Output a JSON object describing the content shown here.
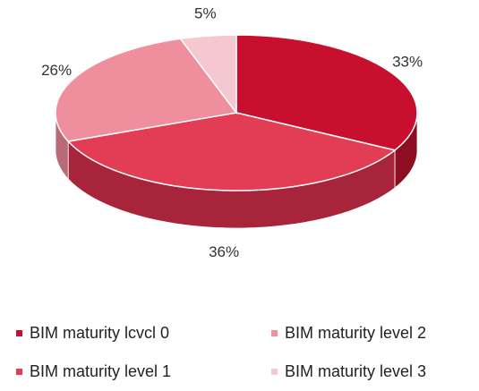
{
  "chart_data": {
    "type": "pie",
    "title": "",
    "categories": [
      "BIM maturity lcvcl 0",
      "BIM maturity level 1",
      "BIM maturity level 2",
      "BIM maturity level 3"
    ],
    "values": [
      33,
      36,
      26,
      5
    ],
    "labels": [
      "33%",
      "36%",
      "26%",
      "5%"
    ],
    "colors": [
      "#c8102e",
      "#e23d55",
      "#ef8e9c",
      "#f5c8cf"
    ],
    "side_colors": [
      "#8e0d22",
      "#a8243b",
      "#b86a77",
      "#c29aa0"
    ],
    "style": "3d",
    "legend_position": "bottom"
  },
  "legend": {
    "items": [
      {
        "label": "BIM maturity lcvcl 0",
        "color": "#c8102e"
      },
      {
        "label": "BIM maturity level 1",
        "color": "#e23d55"
      },
      {
        "label": "BIM maturity level 2",
        "color": "#ef8e9c"
      },
      {
        "label": "BIM maturity level 3",
        "color": "#f5c8cf"
      }
    ]
  }
}
